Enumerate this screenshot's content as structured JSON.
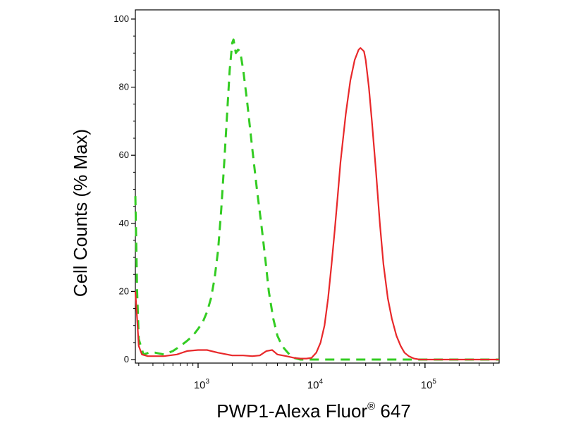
{
  "chart_data": {
    "type": "line",
    "xlabel": "PWP1-Alexa Fluor",
    "xlabel_superscript": "®",
    "xlabel_suffix": " 647",
    "ylabel": "Cell Counts (% Max)",
    "xscale": "log",
    "xlim": [
      280,
      450000
    ],
    "ylim": [
      0,
      100
    ],
    "x_ticks": [
      {
        "base": "10",
        "exp": "3",
        "value": 1000
      },
      {
        "base": "10",
        "exp": "4",
        "value": 10000
      },
      {
        "base": "10",
        "exp": "5",
        "value": 100000
      }
    ],
    "y_ticks": [
      "0",
      "20",
      "40",
      "60",
      "80",
      "100"
    ],
    "grid": false,
    "series": [
      {
        "color": "#33cc22",
        "style": "dashed",
        "points": [
          [
            280,
            48
          ],
          [
            290,
            20
          ],
          [
            300,
            6
          ],
          [
            330,
            1.5
          ],
          [
            370,
            2
          ],
          [
            420,
            2
          ],
          [
            500,
            1.5
          ],
          [
            600,
            2.5
          ],
          [
            700,
            4
          ],
          [
            800,
            5.5
          ],
          [
            900,
            7
          ],
          [
            1000,
            9
          ],
          [
            1100,
            11
          ],
          [
            1200,
            14
          ],
          [
            1300,
            18
          ],
          [
            1400,
            24
          ],
          [
            1500,
            32
          ],
          [
            1600,
            44
          ],
          [
            1700,
            58
          ],
          [
            1800,
            72
          ],
          [
            1900,
            85
          ],
          [
            2000,
            93
          ],
          [
            2050,
            94
          ],
          [
            2150,
            90
          ],
          [
            2250,
            91
          ],
          [
            2350,
            90.5
          ],
          [
            2500,
            85
          ],
          [
            2700,
            76
          ],
          [
            3000,
            62
          ],
          [
            3300,
            50
          ],
          [
            3600,
            40
          ],
          [
            3900,
            30
          ],
          [
            4200,
            20
          ],
          [
            4600,
            12
          ],
          [
            5000,
            7
          ],
          [
            5500,
            4
          ],
          [
            6000,
            2.5
          ],
          [
            6500,
            1.2
          ],
          [
            7000,
            0.5
          ],
          [
            8000,
            0
          ],
          [
            10000,
            0
          ],
          [
            100000,
            0
          ],
          [
            450000,
            0
          ]
        ]
      },
      {
        "color": "#e8282a",
        "style": "solid",
        "points": [
          [
            280,
            20
          ],
          [
            290,
            12
          ],
          [
            300,
            4
          ],
          [
            320,
            1.5
          ],
          [
            360,
            1
          ],
          [
            420,
            1
          ],
          [
            500,
            1
          ],
          [
            650,
            1.5
          ],
          [
            800,
            2.5
          ],
          [
            1000,
            2.8
          ],
          [
            1200,
            2.8
          ],
          [
            1500,
            2
          ],
          [
            2000,
            1.2
          ],
          [
            2500,
            1.2
          ],
          [
            3000,
            1
          ],
          [
            3500,
            1.2
          ],
          [
            4000,
            2.5
          ],
          [
            4500,
            2.8
          ],
          [
            5000,
            1.5
          ],
          [
            6000,
            1
          ],
          [
            7000,
            0.5
          ],
          [
            8000,
            0.3
          ],
          [
            9000,
            0.3
          ],
          [
            10000,
            0.5
          ],
          [
            11000,
            2
          ],
          [
            12000,
            5
          ],
          [
            13000,
            10
          ],
          [
            14000,
            18
          ],
          [
            15000,
            28
          ],
          [
            16000,
            38
          ],
          [
            17000,
            48
          ],
          [
            18000,
            58
          ],
          [
            20000,
            72
          ],
          [
            22000,
            82
          ],
          [
            24000,
            88
          ],
          [
            26000,
            91
          ],
          [
            27000,
            91.5
          ],
          [
            28000,
            91
          ],
          [
            29000,
            90.5
          ],
          [
            30000,
            88
          ],
          [
            32000,
            80
          ],
          [
            34000,
            70
          ],
          [
            37000,
            55
          ],
          [
            40000,
            40
          ],
          [
            43000,
            28
          ],
          [
            47000,
            18
          ],
          [
            51000,
            12
          ],
          [
            56000,
            7
          ],
          [
            61000,
            4
          ],
          [
            66000,
            2
          ],
          [
            72000,
            1
          ],
          [
            80000,
            0.3
          ],
          [
            90000,
            0
          ],
          [
            100000,
            0
          ],
          [
            450000,
            0
          ]
        ]
      }
    ]
  }
}
